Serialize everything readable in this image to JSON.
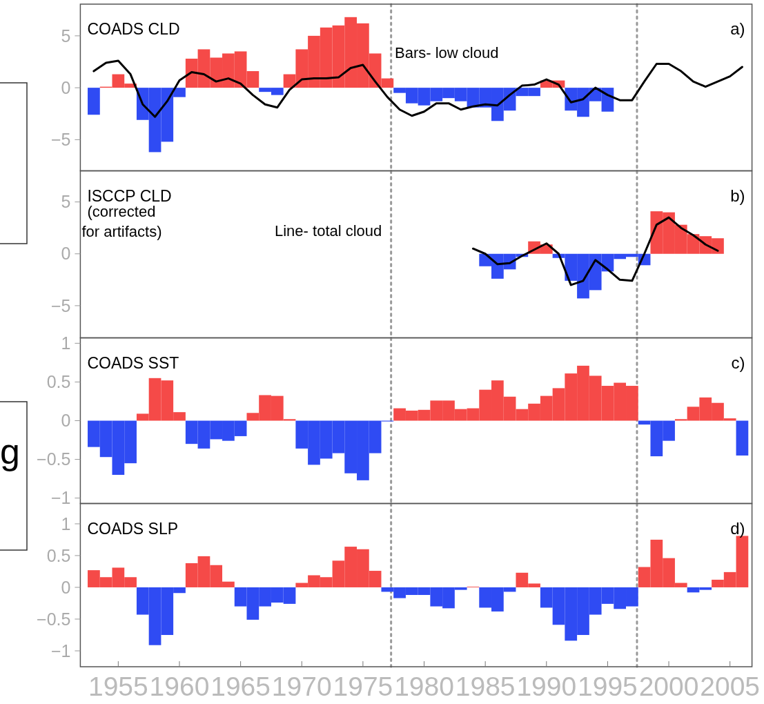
{
  "chart_data": [
    {
      "type": "bar",
      "title": "COADS CLD",
      "x": [
        1953,
        1954,
        1955,
        1956,
        1957,
        1958,
        1959,
        1960,
        1961,
        1962,
        1963,
        1964,
        1965,
        1966,
        1967,
        1968,
        1969,
        1970,
        1971,
        1972,
        1973,
        1974,
        1975,
        1976,
        1977,
        1978,
        1979,
        1980,
        1981,
        1982,
        1983,
        1984,
        1985,
        1986,
        1987,
        1988,
        1989,
        1990,
        1991,
        1992,
        1993,
        1994,
        1995,
        1996,
        1997,
        1998,
        1999,
        2000,
        2001,
        2002,
        2003,
        2004,
        2005,
        2006
      ],
      "xlim": [
        1951.9,
        2006.8
      ],
      "ylim": [
        -8,
        8.05
      ],
      "yticks": [
        {
          "value": -5,
          "label": "−5"
        },
        0,
        5
      ],
      "tick_labels": "y",
      "series": [
        {
          "values": [
            -2.6,
            0.1,
            1.3,
            0.4,
            -3.1,
            -6.2,
            -5.2,
            -0.9,
            2.8,
            3.7,
            2.9,
            3.3,
            3.5,
            1.6,
            -0.4,
            -0.7,
            1.3,
            3.7,
            5.0,
            5.8,
            6.0,
            6.8,
            6.2,
            3.3,
            0.9,
            -0.5,
            -1.5,
            -1.7,
            -1.3,
            -1.0,
            -1.3,
            -1.9,
            -1.9,
            -3.2,
            -2.2,
            -0.8,
            -0.8,
            0.7,
            0.7,
            -2.2,
            -2.8,
            -1.3,
            -2.3,
            null,
            null,
            null,
            null,
            null,
            null,
            null,
            null,
            null,
            null,
            null
          ],
          "colors": [
            "#2f4bf3",
            "#f54a48",
            "#f54a48",
            "#f54a48",
            "#2f4bf3",
            "#2f4bf3",
            "#2f4bf3",
            "#2f4bf3",
            "#f54a48",
            "#f54a48",
            "#f54a48",
            "#f54a48",
            "#f54a48",
            "#f54a48",
            "#2f4bf3",
            "#2f4bf3",
            "#f54a48",
            "#f54a48",
            "#f54a48",
            "#f54a48",
            "#f54a48",
            "#f54a48",
            "#f54a48",
            "#f54a48",
            "#f54a48",
            "#2f4bf3",
            "#2f4bf3",
            "#2f4bf3",
            "#2f4bf3",
            "#2f4bf3",
            "#2f4bf3",
            "#2f4bf3",
            "#2f4bf3",
            "#2f4bf3",
            "#2f4bf3",
            "#2f4bf3",
            "#2f4bf3",
            "#f54a48",
            "#f54a48",
            "#2f4bf3",
            "#2f4bf3",
            "#2f4bf3",
            "#2f4bf3",
            null,
            null,
            null,
            null,
            null,
            null,
            null,
            null,
            null,
            null,
            null
          ]
        },
        {
          "type": "line",
          "color": "#000000",
          "values": [
            1.6,
            2.4,
            2.6,
            1.3,
            -1.6,
            -2.8,
            -1.3,
            0.7,
            1.5,
            1.3,
            0.6,
            0.9,
            0.4,
            -0.7,
            -1.6,
            -1.9,
            -0.2,
            0.8,
            0.9,
            0.9,
            1.0,
            1.9,
            2.2,
            0.6,
            -0.9,
            -2.1,
            -2.7,
            -2.3,
            -1.5,
            -1.5,
            -2.1,
            -1.8,
            -1.6,
            -1.7,
            -0.7,
            0.2,
            0.3,
            0.8,
            0.3,
            -1.4,
            -1.1,
            0.0,
            -0.7,
            -1.2,
            -1.2,
            0.6,
            2.3,
            2.3,
            1.6,
            0.6,
            0.1,
            0.6,
            1.1,
            2.0
          ]
        }
      ],
      "ref_lines": [
        {
          "axis": "x",
          "value": 1977.3,
          "color": "#999999",
          "line_style": "dotted"
        },
        {
          "axis": "x",
          "value": 1997.4,
          "color": "#999999",
          "line_style": "dotted"
        }
      ],
      "annotations": [
        "a)",
        "Bars- low cloud"
      ]
    },
    {
      "type": "bar",
      "title": "ISCCP CLD",
      "subtitle": "(corrected for artifacts)",
      "x": [
        1984,
        1985,
        1986,
        1987,
        1988,
        1989,
        1990,
        1991,
        1992,
        1993,
        1994,
        1995,
        1996,
        1997,
        1998,
        1999,
        2000,
        2001,
        2002,
        2003,
        2004
      ],
      "xlim": [
        1951.9,
        2006.8
      ],
      "ylim": [
        -8.1,
        8
      ],
      "yticks": [
        {
          "value": -5,
          "label": "−5"
        },
        0,
        5
      ],
      "tick_labels": "y",
      "series": [
        {
          "values": [
            null,
            -1.2,
            -2.4,
            -1.5,
            -0.3,
            1.2,
            0.9,
            -0.4,
            -2.6,
            -4.3,
            -3.5,
            -1.7,
            -0.5,
            -0.3,
            -1.1,
            4.1,
            4.0,
            2.8,
            1.9,
            1.7,
            1.5
          ],
          "colors": [
            null,
            "#2f4bf3",
            "#2f4bf3",
            "#2f4bf3",
            "#2f4bf3",
            "#f54a48",
            "#f54a48",
            "#2f4bf3",
            "#2f4bf3",
            "#2f4bf3",
            "#2f4bf3",
            "#2f4bf3",
            "#2f4bf3",
            "#2f4bf3",
            "#2f4bf3",
            "#f54a48",
            "#f54a48",
            "#f54a48",
            "#f54a48",
            "#f54a48",
            "#f54a48"
          ]
        },
        {
          "type": "line",
          "color": "#000000",
          "values": [
            0.5,
            0.0,
            -1.0,
            -0.9,
            -0.2,
            0.4,
            1.0,
            0.0,
            -3.0,
            -2.6,
            -0.6,
            -1.5,
            -2.5,
            -2.6,
            0.0,
            2.8,
            3.5,
            2.5,
            1.8,
            0.9,
            0.3
          ]
        }
      ],
      "ref_lines": [
        {
          "axis": "x",
          "value": 1977.3,
          "color": "#999999",
          "line_style": "dotted"
        },
        {
          "axis": "x",
          "value": 1997.4,
          "color": "#999999",
          "line_style": "dotted"
        }
      ],
      "annotations": [
        "b)",
        "Line- total cloud"
      ]
    },
    {
      "type": "bar",
      "title": "COADS SST",
      "x": [
        1953,
        1954,
        1955,
        1956,
        1957,
        1958,
        1959,
        1960,
        1961,
        1962,
        1963,
        1964,
        1965,
        1966,
        1967,
        1968,
        1969,
        1970,
        1971,
        1972,
        1973,
        1974,
        1975,
        1976,
        1977,
        1978,
        1979,
        1980,
        1981,
        1982,
        1983,
        1984,
        1985,
        1986,
        1987,
        1988,
        1989,
        1990,
        1991,
        1992,
        1993,
        1994,
        1995,
        1996,
        1997,
        1998,
        1999,
        2000,
        2001,
        2002,
        2003,
        2004,
        2005,
        2006
      ],
      "xlim": [
        1951.9,
        2006.8
      ],
      "ylim": [
        -1.07,
        1.07
      ],
      "yticks": [
        {
          "value": -1,
          "label": "−1"
        },
        {
          "value": -0.5,
          "label": "−0.5"
        },
        0,
        0.5,
        1
      ],
      "tick_labels": "y",
      "series": [
        {
          "values": [
            -0.34,
            -0.47,
            -0.7,
            -0.55,
            0.09,
            0.55,
            0.52,
            0.11,
            -0.3,
            -0.36,
            -0.24,
            -0.26,
            -0.2,
            0.1,
            0.33,
            0.32,
            0.02,
            -0.36,
            -0.57,
            -0.49,
            -0.42,
            -0.68,
            -0.77,
            -0.42,
            -0.01,
            0.16,
            0.13,
            0.14,
            0.26,
            0.26,
            0.15,
            0.16,
            0.4,
            0.52,
            0.31,
            0.15,
            0.22,
            0.32,
            0.42,
            0.61,
            0.71,
            0.58,
            0.45,
            0.49,
            0.45,
            -0.05,
            -0.46,
            -0.26,
            0.02,
            0.18,
            0.3,
            0.23,
            0.03,
            -0.45
          ],
          "colors": [
            "#2f4bf3",
            "#2f4bf3",
            "#2f4bf3",
            "#2f4bf3",
            "#f54a48",
            "#f54a48",
            "#f54a48",
            "#f54a48",
            "#2f4bf3",
            "#2f4bf3",
            "#2f4bf3",
            "#2f4bf3",
            "#2f4bf3",
            "#f54a48",
            "#f54a48",
            "#f54a48",
            "#f54a48",
            "#2f4bf3",
            "#2f4bf3",
            "#2f4bf3",
            "#2f4bf3",
            "#2f4bf3",
            "#2f4bf3",
            "#2f4bf3",
            "#2f4bf3",
            "#f54a48",
            "#f54a48",
            "#f54a48",
            "#f54a48",
            "#f54a48",
            "#f54a48",
            "#f54a48",
            "#f54a48",
            "#f54a48",
            "#f54a48",
            "#f54a48",
            "#f54a48",
            "#f54a48",
            "#f54a48",
            "#f54a48",
            "#f54a48",
            "#f54a48",
            "#f54a48",
            "#f54a48",
            "#f54a48",
            "#2f4bf3",
            "#2f4bf3",
            "#2f4bf3",
            "#f54a48",
            "#f54a48",
            "#f54a48",
            "#f54a48",
            "#f54a48",
            "#2f4bf3"
          ]
        }
      ],
      "ref_lines": [
        {
          "axis": "x",
          "value": 1977.3,
          "color": "#999999",
          "line_style": "dotted"
        },
        {
          "axis": "x",
          "value": 1997.4,
          "color": "#999999",
          "line_style": "dotted"
        }
      ],
      "annotations": [
        "c)",
        "g"
      ]
    },
    {
      "type": "bar",
      "title": "COADS SLP",
      "x": [
        1953,
        1954,
        1955,
        1956,
        1957,
        1958,
        1959,
        1960,
        1961,
        1962,
        1963,
        1964,
        1965,
        1966,
        1967,
        1968,
        1969,
        1970,
        1971,
        1972,
        1973,
        1974,
        1975,
        1976,
        1977,
        1978,
        1979,
        1980,
        1981,
        1982,
        1983,
        1984,
        1985,
        1986,
        1987,
        1988,
        1989,
        1990,
        1991,
        1992,
        1993,
        1994,
        1995,
        1996,
        1997,
        1998,
        1999,
        2000,
        2001,
        2002,
        2003,
        2004,
        2005,
        2006
      ],
      "xlim": [
        1951.9,
        2006.8
      ],
      "xticks": [
        1955,
        1960,
        1965,
        1970,
        1975,
        1980,
        1985,
        1990,
        1995,
        2000,
        2005
      ],
      "ylim": [
        -1.25,
        1.32
      ],
      "yticks": [
        {
          "value": -1,
          "label": "−1"
        },
        {
          "value": -0.5,
          "label": "−0.5"
        },
        0,
        0.5,
        1
      ],
      "series": [
        {
          "values": [
            0.27,
            0.16,
            0.31,
            0.16,
            -0.43,
            -0.91,
            -0.75,
            -0.09,
            0.38,
            0.49,
            0.35,
            0.09,
            -0.3,
            -0.51,
            -0.3,
            -0.24,
            -0.26,
            0.07,
            0.19,
            0.16,
            0.42,
            0.64,
            0.6,
            0.26,
            -0.07,
            -0.17,
            -0.12,
            -0.12,
            -0.3,
            -0.33,
            -0.04,
            0.01,
            -0.32,
            -0.38,
            -0.07,
            0.23,
            0.06,
            -0.32,
            -0.59,
            -0.84,
            -0.75,
            -0.43,
            -0.26,
            -0.34,
            -0.3,
            0.32,
            0.75,
            0.46,
            0.07,
            -0.08,
            -0.04,
            0.12,
            0.24,
            0.81
          ],
          "colors": [
            "#f54a48",
            "#f54a48",
            "#f54a48",
            "#f54a48",
            "#2f4bf3",
            "#2f4bf3",
            "#2f4bf3",
            "#2f4bf3",
            "#f54a48",
            "#f54a48",
            "#f54a48",
            "#f54a48",
            "#2f4bf3",
            "#2f4bf3",
            "#2f4bf3",
            "#2f4bf3",
            "#2f4bf3",
            "#f54a48",
            "#f54a48",
            "#f54a48",
            "#f54a48",
            "#f54a48",
            "#f54a48",
            "#f54a48",
            "#2f4bf3",
            "#2f4bf3",
            "#2f4bf3",
            "#2f4bf3",
            "#2f4bf3",
            "#2f4bf3",
            "#2f4bf3",
            "#f54a48",
            "#2f4bf3",
            "#2f4bf3",
            "#2f4bf3",
            "#f54a48",
            "#f54a48",
            "#2f4bf3",
            "#2f4bf3",
            "#2f4bf3",
            "#2f4bf3",
            "#2f4bf3",
            "#2f4bf3",
            "#2f4bf3",
            "#2f4bf3",
            "#f54a48",
            "#f54a48",
            "#f54a48",
            "#f54a48",
            "#2f4bf3",
            "#2f4bf3",
            "#f54a48",
            "#f54a48",
            "#f54a48"
          ]
        }
      ],
      "ref_lines": [
        {
          "axis": "x",
          "value": 1977.3,
          "color": "#999999",
          "line_style": "dotted"
        },
        {
          "axis": "x",
          "value": 1997.4,
          "color": "#999999",
          "line_style": "dotted"
        }
      ],
      "annotations": [
        "d)"
      ]
    }
  ]
}
